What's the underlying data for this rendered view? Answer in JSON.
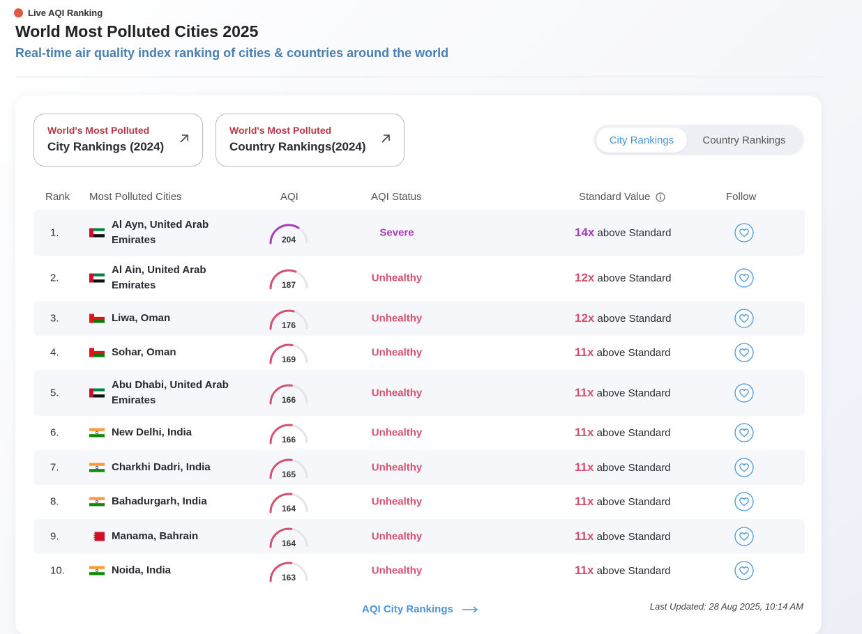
{
  "header": {
    "live_label": "Live AQI Ranking",
    "title": "World Most Polluted Cities 2025",
    "subtitle": "Real-time air quality index ranking of cities & countries around the world"
  },
  "links": [
    {
      "top": "World's Most Polluted",
      "bottom": "City Rankings (2024)"
    },
    {
      "top": "World's Most Polluted",
      "bottom": "Country Rankings(2024)"
    }
  ],
  "toggle": {
    "active": "City Rankings",
    "inactive": "Country Rankings"
  },
  "table": {
    "headers": {
      "rank": "Rank",
      "city": "Most Polluted Cities",
      "aqi": "AQI",
      "status": "AQI Status",
      "standard": "Standard Value",
      "follow": "Follow"
    },
    "rows": [
      {
        "rank": "1.",
        "flag": "uae",
        "city": "Al Ayn, United Arab Emirates",
        "aqi": "204",
        "aqi_value": 204,
        "status": "Severe",
        "multiplier": "14x",
        "standard_suffix": "above Standard"
      },
      {
        "rank": "2.",
        "flag": "uae",
        "city": "Al Ain, United Arab Emirates",
        "aqi": "187",
        "aqi_value": 187,
        "status": "Unhealthy",
        "multiplier": "12x",
        "standard_suffix": "above Standard"
      },
      {
        "rank": "3.",
        "flag": "oman",
        "city": "Liwa, Oman",
        "aqi": "176",
        "aqi_value": 176,
        "status": "Unhealthy",
        "multiplier": "12x",
        "standard_suffix": "above Standard"
      },
      {
        "rank": "4.",
        "flag": "oman",
        "city": "Sohar, Oman",
        "aqi": "169",
        "aqi_value": 169,
        "status": "Unhealthy",
        "multiplier": "11x",
        "standard_suffix": "above Standard"
      },
      {
        "rank": "5.",
        "flag": "uae",
        "city": "Abu Dhabi, United Arab Emirates",
        "aqi": "166",
        "aqi_value": 166,
        "status": "Unhealthy",
        "multiplier": "11x",
        "standard_suffix": "above Standard"
      },
      {
        "rank": "6.",
        "flag": "india",
        "city": "New Delhi, India",
        "aqi": "166",
        "aqi_value": 166,
        "status": "Unhealthy",
        "multiplier": "11x",
        "standard_suffix": "above Standard"
      },
      {
        "rank": "7.",
        "flag": "india",
        "city": "Charkhi Dadri, India",
        "aqi": "165",
        "aqi_value": 165,
        "status": "Unhealthy",
        "multiplier": "11x",
        "standard_suffix": "above Standard"
      },
      {
        "rank": "8.",
        "flag": "india",
        "city": "Bahadurgarh, India",
        "aqi": "164",
        "aqi_value": 164,
        "status": "Unhealthy",
        "multiplier": "11x",
        "standard_suffix": "above Standard"
      },
      {
        "rank": "9.",
        "flag": "bahrain",
        "city": "Manama, Bahrain",
        "aqi": "164",
        "aqi_value": 164,
        "status": "Unhealthy",
        "multiplier": "11x",
        "standard_suffix": "above Standard"
      },
      {
        "rank": "10.",
        "flag": "india",
        "city": "Noida, India",
        "aqi": "163",
        "aqi_value": 163,
        "status": "Unhealthy",
        "multiplier": "11x",
        "standard_suffix": "above Standard"
      }
    ]
  },
  "footer": {
    "link": "AQI City Rankings",
    "updated": "Last Updated: 28 Aug 2025, 10:14 AM"
  },
  "colors": {
    "severe": "#a83dbb",
    "unhealthy": "#d5506f",
    "accent": "#4a96d8",
    "live_dot": "#e0583f",
    "gauge_track": "#e4e5ea"
  },
  "icons": {
    "external_link": "arrow-up-right-icon",
    "info": "info-icon",
    "follow": "heart-icon",
    "arrow_right": "arrow-right-icon"
  }
}
